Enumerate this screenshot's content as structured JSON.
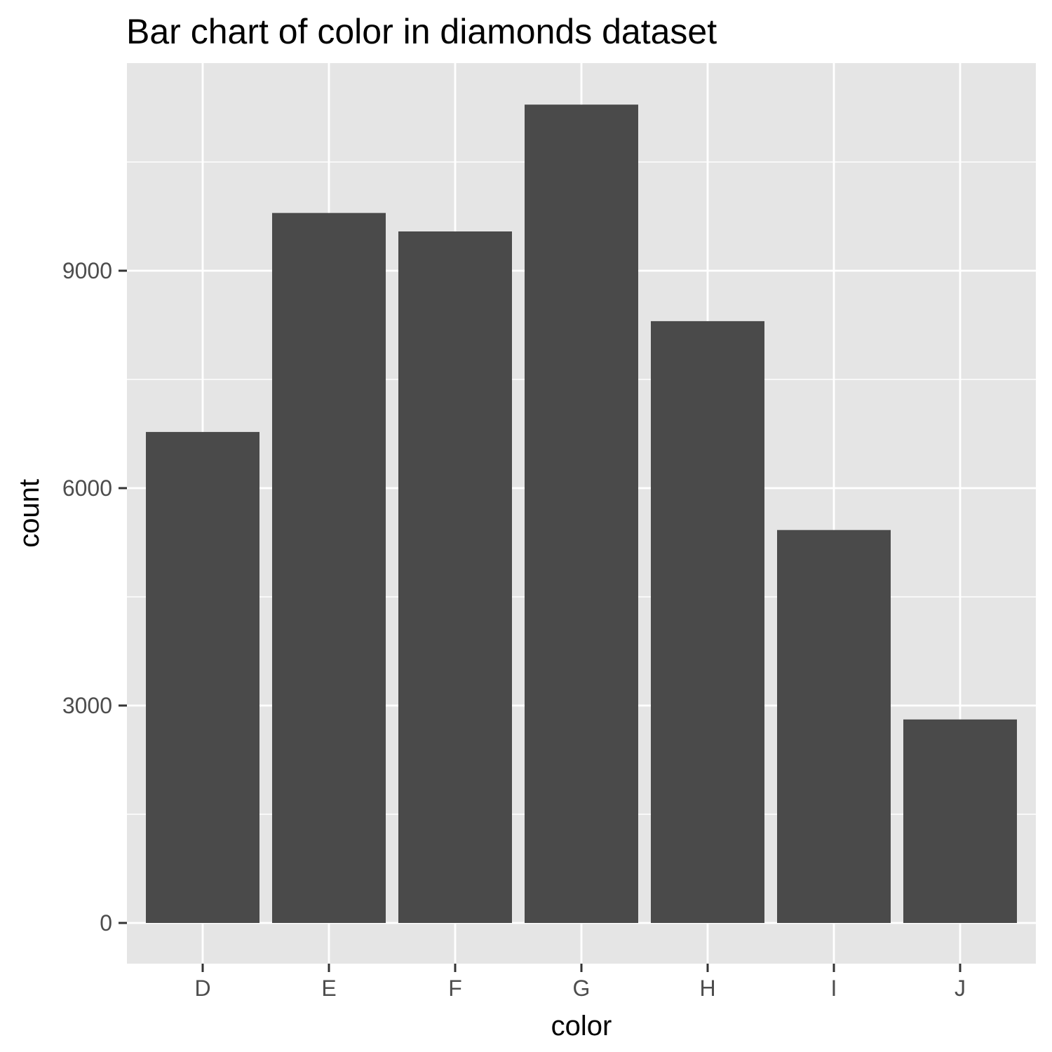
{
  "chart_data": {
    "type": "bar",
    "title": "Bar chart of color in diamonds dataset",
    "xlabel": "color",
    "ylabel": "count",
    "categories": [
      "D",
      "E",
      "F",
      "G",
      "H",
      "I",
      "J"
    ],
    "values": [
      6775,
      9797,
      9542,
      11292,
      8304,
      5422,
      2808
    ],
    "ylim": [
      0,
      11856
    ],
    "yticks": [
      0,
      3000,
      6000,
      9000
    ],
    "ytick_labels": [
      "0",
      "3000",
      "6000",
      "9000"
    ],
    "grid": true,
    "legend": "none",
    "colors": {
      "bar": "#4a4a4a",
      "panel": "#e5e5e5",
      "grid": "#ffffff",
      "tick": "#333333"
    }
  }
}
